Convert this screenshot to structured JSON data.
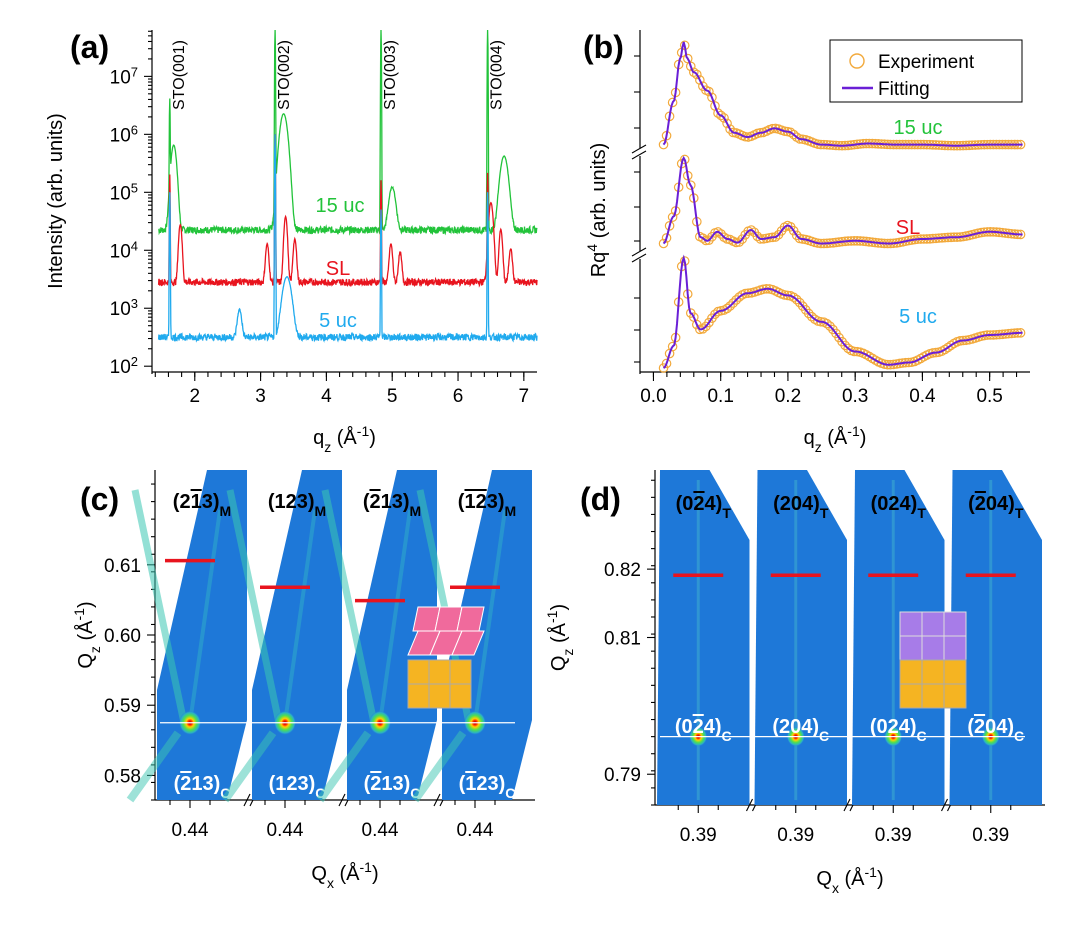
{
  "figure": {
    "panel_labels": [
      "(a)",
      "(b)",
      "(c)",
      "(d)"
    ]
  },
  "colors": {
    "green": "#22c33a",
    "red": "#e8141e",
    "blue": "#20aaee",
    "orange": "#f2a93b",
    "purple": "#6a1fd6",
    "map_bg": "#1e78d8",
    "marker_red": "#e8141e",
    "pink_cell": "#f06a9c",
    "yellow_cell": "#f5b422",
    "violet_cell": "#a77ce8"
  },
  "chart_data": [
    {
      "id": "a",
      "type": "line",
      "xlabel": "q",
      "xlabel_sub": "z",
      "xlabel_unit": " (Å",
      "xlabel_unit_sup": "-1",
      "xlabel_close": ")",
      "ylabel": "Intensity (arb. units)",
      "xlim": [
        1.35,
        7.2
      ],
      "ylim_log10": [
        1.9,
        7.8
      ],
      "y_scale": "log",
      "x_ticks": [
        "2",
        "3",
        "4",
        "5",
        "6",
        "7"
      ],
      "x_tick_values": [
        2,
        3,
        4,
        5,
        6,
        7
      ],
      "y_ticks_base": "10",
      "y_ticks_exp": [
        "2",
        "3",
        "4",
        "5",
        "6",
        "7"
      ],
      "substrate_peaks": [
        {
          "label": "STO(001)",
          "x": 1.62
        },
        {
          "label": "STO(002)",
          "x": 3.22
        },
        {
          "label": "STO(003)",
          "x": 4.83
        },
        {
          "label": "STO(004)",
          "x": 6.45
        }
      ],
      "series": [
        {
          "name": "15 uc",
          "color": "green",
          "base_log": 4.35,
          "oscillation": 0.0,
          "thin_peaks": [
            [
              1.62,
              6.6
            ],
            [
              3.22,
              7.8
            ],
            [
              4.83,
              7.8
            ],
            [
              6.45,
              7.8
            ]
          ],
          "broad_peaks": [
            [
              1.68,
              5.8,
              0.05
            ],
            [
              3.35,
              6.35,
              0.07
            ],
            [
              5.0,
              5.0,
              0.06
            ],
            [
              6.7,
              5.6,
              0.07
            ]
          ]
        },
        {
          "name": "SL",
          "color": "red",
          "base_log": 3.45,
          "oscillation": 0.15,
          "thin_peaks": [
            [
              1.62,
              5.3
            ],
            [
              3.22,
              6.0
            ],
            [
              4.83,
              5.2
            ],
            [
              6.45,
              5.3
            ]
          ],
          "broad_peaks": [
            [
              1.78,
              4.4,
              0.03
            ],
            [
              3.1,
              4.0,
              0.03
            ],
            [
              3.38,
              4.55,
              0.03
            ],
            [
              3.52,
              4.1,
              0.03
            ],
            [
              4.98,
              4.0,
              0.03
            ],
            [
              5.12,
              3.8,
              0.03
            ],
            [
              6.5,
              4.8,
              0.04
            ],
            [
              6.65,
              4.3,
              0.03
            ],
            [
              6.8,
              3.9,
              0.03
            ]
          ]
        },
        {
          "name": "5 uc",
          "color": "blue",
          "base_log": 2.5,
          "oscillation": 0.0,
          "thin_peaks": [
            [
              1.62,
              5.0
            ],
            [
              3.22,
              6.0
            ],
            [
              4.83,
              4.7
            ],
            [
              6.45,
              5.0
            ]
          ],
          "broad_peaks": [
            [
              2.68,
              2.8,
              0.04
            ],
            [
              3.4,
              3.5,
              0.08
            ]
          ]
        }
      ]
    },
    {
      "id": "b",
      "type": "line",
      "xlabel": "q",
      "xlabel_sub": "z",
      "xlabel_unit": " (Å",
      "xlabel_unit_sup": "-1",
      "xlabel_close": ")",
      "ylabel": "Rq",
      "ylabel_sup": "4",
      "ylabel_unit": " (arb. units)",
      "xlim": [
        -0.02,
        0.56
      ],
      "x_ticks": [
        "0.0",
        "0.1",
        "0.2",
        "0.3",
        "0.4",
        "0.5"
      ],
      "x_tick_values": [
        0.0,
        0.1,
        0.2,
        0.3,
        0.4,
        0.5
      ],
      "legend": {
        "position": "top-right",
        "entries": [
          {
            "label": "Experiment",
            "marker": "open-circle",
            "color": "orange"
          },
          {
            "label": "Fitting",
            "marker": "line",
            "color": "purple"
          }
        ]
      },
      "panels": [
        {
          "name": "15 uc",
          "label_color": "green",
          "points": [
            [
              0.015,
              0.05
            ],
            [
              0.03,
              0.45
            ],
            [
              0.04,
              0.85
            ],
            [
              0.045,
              1.0
            ],
            [
              0.05,
              0.85
            ],
            [
              0.06,
              0.72
            ],
            [
              0.08,
              0.55
            ],
            [
              0.1,
              0.32
            ],
            [
              0.12,
              0.16
            ],
            [
              0.14,
              0.12
            ],
            [
              0.16,
              0.16
            ],
            [
              0.18,
              0.2
            ],
            [
              0.2,
              0.17
            ],
            [
              0.22,
              0.1
            ],
            [
              0.25,
              0.05
            ],
            [
              0.28,
              0.04
            ],
            [
              0.32,
              0.06
            ],
            [
              0.36,
              0.05
            ],
            [
              0.4,
              0.05
            ],
            [
              0.45,
              0.04
            ],
            [
              0.5,
              0.05
            ],
            [
              0.55,
              0.05
            ]
          ]
        },
        {
          "name": "SL",
          "label_color": "red",
          "points": [
            [
              0.015,
              0.05
            ],
            [
              0.03,
              0.35
            ],
            [
              0.045,
              1.0
            ],
            [
              0.055,
              0.7
            ],
            [
              0.07,
              0.12
            ],
            [
              0.08,
              0.08
            ],
            [
              0.095,
              0.18
            ],
            [
              0.11,
              0.1
            ],
            [
              0.125,
              0.06
            ],
            [
              0.145,
              0.2
            ],
            [
              0.16,
              0.1
            ],
            [
              0.18,
              0.12
            ],
            [
              0.2,
              0.25
            ],
            [
              0.22,
              0.1
            ],
            [
              0.25,
              0.05
            ],
            [
              0.3,
              0.08
            ],
            [
              0.35,
              0.05
            ],
            [
              0.4,
              0.1
            ],
            [
              0.45,
              0.12
            ],
            [
              0.5,
              0.18
            ],
            [
              0.55,
              0.15
            ]
          ]
        },
        {
          "name": "5 uc",
          "label_color": "blue",
          "points": [
            [
              0.015,
              0.0
            ],
            [
              0.03,
              0.2
            ],
            [
              0.045,
              1.0
            ],
            [
              0.055,
              0.5
            ],
            [
              0.07,
              0.35
            ],
            [
              0.1,
              0.52
            ],
            [
              0.14,
              0.68
            ],
            [
              0.17,
              0.72
            ],
            [
              0.2,
              0.66
            ],
            [
              0.25,
              0.42
            ],
            [
              0.3,
              0.15
            ],
            [
              0.35,
              0.03
            ],
            [
              0.38,
              0.05
            ],
            [
              0.42,
              0.14
            ],
            [
              0.46,
              0.25
            ],
            [
              0.5,
              0.3
            ],
            [
              0.55,
              0.32
            ]
          ]
        }
      ]
    },
    {
      "id": "c",
      "type": "heatmap",
      "xlabel": "Q",
      "xlabel_sub": "x",
      "xlabel_unit": " (Å",
      "xlabel_unit_sup": "-1",
      "xlabel_close": ")",
      "ylabel": "Q",
      "ylabel_sub": "z",
      "ylabel_unit": " (Å",
      "ylabel_unit_sup": "-1",
      "ylabel_close": ")",
      "ylim": [
        0.5765,
        0.6235
      ],
      "y_ticks": [
        "0.58",
        "0.59",
        "0.60",
        "0.61"
      ],
      "y_tick_values": [
        0.58,
        0.59,
        0.6,
        0.61
      ],
      "x_tick_label": "0.44",
      "substrate_peak_y": 0.5875,
      "maps": [
        {
          "top": "(2",
          "top_bar": "1",
          "top_rest": "3)",
          "top_sub": "M",
          "top_prefix_bar": "",
          "bottom": "(",
          "bottom_bar": "2",
          "bottom_rest": "13)",
          "bottom_sub": "C",
          "film_y": 0.6106
        },
        {
          "top": "(123)",
          "top_bar": "",
          "top_rest": "",
          "top_sub": "M",
          "top_prefix_bar": "",
          "bottom": "(123)",
          "bottom_bar": "",
          "bottom_rest": "",
          "bottom_sub": "C",
          "film_y": 0.6068
        },
        {
          "top": "(",
          "top_bar": "2",
          "top_rest": "13)",
          "top_sub": "M",
          "top_prefix_bar": "",
          "bottom": "(",
          "bottom_bar": "2",
          "bottom_rest": "13)",
          "bottom_sub": "C",
          "film_y": 0.6049
        },
        {
          "top": "(",
          "top_bar": "12",
          "top_rest": "3)",
          "top_sub": "M",
          "top_prefix_bar": "",
          "bottom": "(",
          "bottom_bar": "1",
          "bottom_rest": "23)",
          "bottom_sub": "C",
          "film_y": 0.6068
        }
      ]
    },
    {
      "id": "d",
      "type": "heatmap",
      "xlabel": "Q",
      "xlabel_sub": "x",
      "xlabel_unit": " (Å",
      "xlabel_unit_sup": "-1",
      "xlabel_close": ")",
      "ylabel": "Q",
      "ylabel_sub": "z",
      "ylabel_unit": " (Å",
      "ylabel_unit_sup": "-1",
      "ylabel_close": ")",
      "ylim": [
        0.7855,
        0.8345
      ],
      "y_ticks": [
        "0.79",
        "0.81",
        "0.82"
      ],
      "y_tick_values": [
        0.79,
        0.81,
        0.82
      ],
      "x_tick_label": "0.39",
      "substrate_peak_y": 0.7955,
      "maps": [
        {
          "top": "(0",
          "top_bar": "2",
          "top_rest": "4)",
          "top_sub": "T",
          "bottom": "(0",
          "bottom_bar": "2",
          "bottom_rest": "4)",
          "bottom_sub": "C",
          "film_y": 0.8191
        },
        {
          "top": "(204)",
          "top_bar": "",
          "top_rest": "",
          "top_sub": "T",
          "bottom": "(204)",
          "bottom_bar": "",
          "bottom_rest": "",
          "bottom_sub": "C",
          "film_y": 0.8191
        },
        {
          "top": "(024)",
          "top_bar": "",
          "top_rest": "",
          "top_sub": "T",
          "bottom": "(024)",
          "bottom_bar": "",
          "bottom_rest": "",
          "bottom_sub": "C",
          "film_y": 0.8191
        },
        {
          "top": "(",
          "top_bar": "2",
          "top_rest": "04)",
          "top_sub": "T",
          "bottom": "(",
          "bottom_bar": "2",
          "bottom_rest": "04)",
          "bottom_sub": "C",
          "film_y": 0.8191
        }
      ]
    }
  ]
}
